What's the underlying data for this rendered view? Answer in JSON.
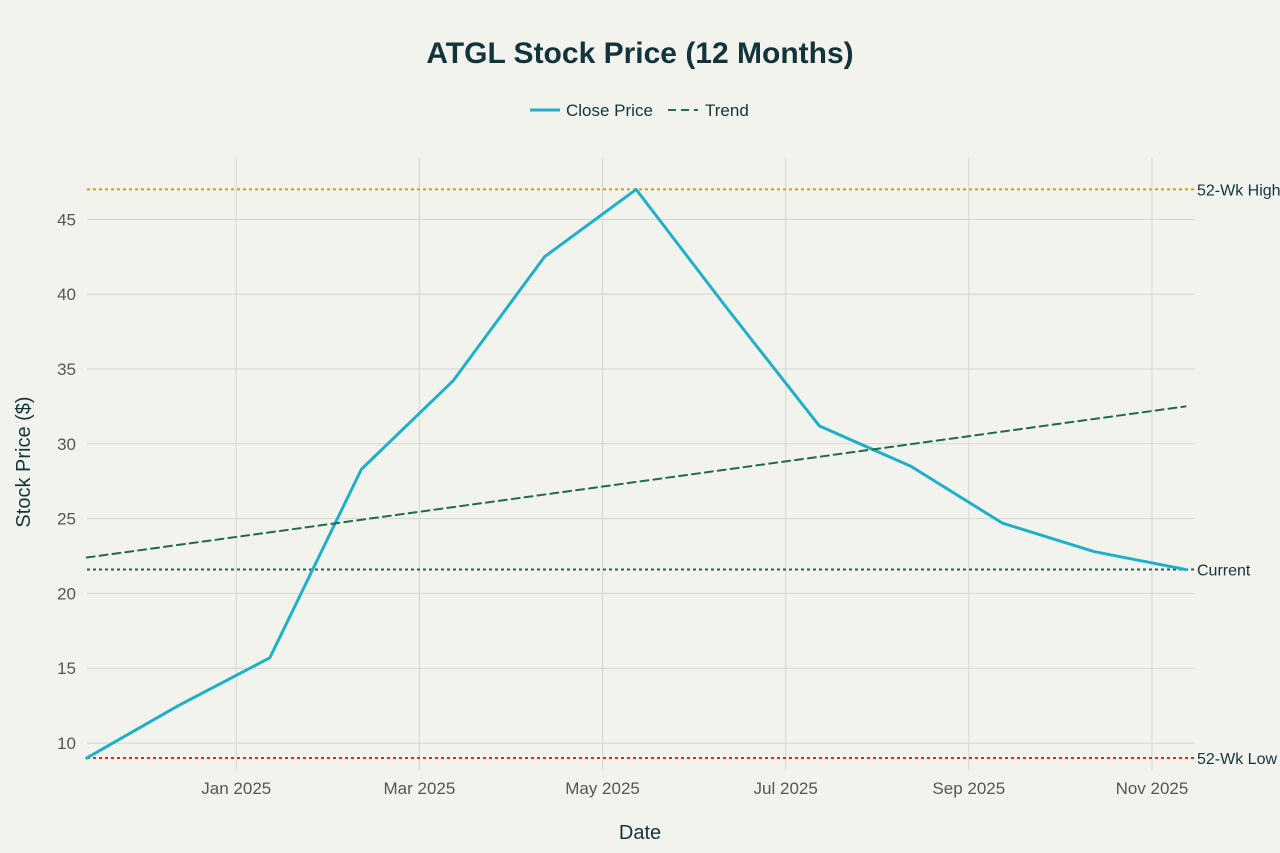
{
  "chart_data": {
    "type": "line",
    "title": "ATGL Stock Price (12 Months)",
    "xlabel": "Date",
    "ylabel": "Stock Price ($)",
    "legend": [
      "Close Price",
      "Trend"
    ],
    "x_ticks": [
      "Jan 2025",
      "Mar 2025",
      "May 2025",
      "Jul 2025",
      "Sep 2025",
      "Nov 2025"
    ],
    "y_ticks": [
      10,
      15,
      20,
      25,
      30,
      35,
      40,
      45
    ],
    "ylim": [
      8.2,
      49.1
    ],
    "xlim_months": [
      0.37,
      12.47
    ],
    "grid": true,
    "series": [
      {
        "name": "Close Price",
        "color": "#1fb0c8",
        "points": [
          {
            "date": "2024-11-12",
            "value": 9.0
          },
          {
            "date": "2024-12-12",
            "value": 12.5
          },
          {
            "date": "2025-01-12",
            "value": 15.7
          },
          {
            "date": "2025-02-12",
            "value": 28.3
          },
          {
            "date": "2025-03-12",
            "value": 34.2
          },
          {
            "date": "2025-04-12",
            "value": 42.5
          },
          {
            "date": "2025-05-12",
            "value": 47.0
          },
          {
            "date": "2025-06-12",
            "value": 39.0
          },
          {
            "date": "2025-07-12",
            "value": 31.2
          },
          {
            "date": "2025-08-12",
            "value": 28.5
          },
          {
            "date": "2025-09-12",
            "value": 24.7
          },
          {
            "date": "2025-10-12",
            "value": 22.8
          },
          {
            "date": "2025-11-12",
            "value": 21.6
          }
        ]
      },
      {
        "name": "Trend",
        "color": "#1f6b4a",
        "dashed": true,
        "points": [
          {
            "date": "2024-11-12",
            "value": 22.4
          },
          {
            "date": "2025-11-12",
            "value": 32.5
          }
        ]
      }
    ],
    "reference_lines": [
      {
        "label": "52-Wk High",
        "value": 47.0,
        "color": "#c9a227"
      },
      {
        "label": "Current",
        "value": 21.6,
        "color": "#2e5c5c"
      },
      {
        "label": "52-Wk Low",
        "value": 9.0,
        "color": "#c0392b"
      }
    ]
  }
}
